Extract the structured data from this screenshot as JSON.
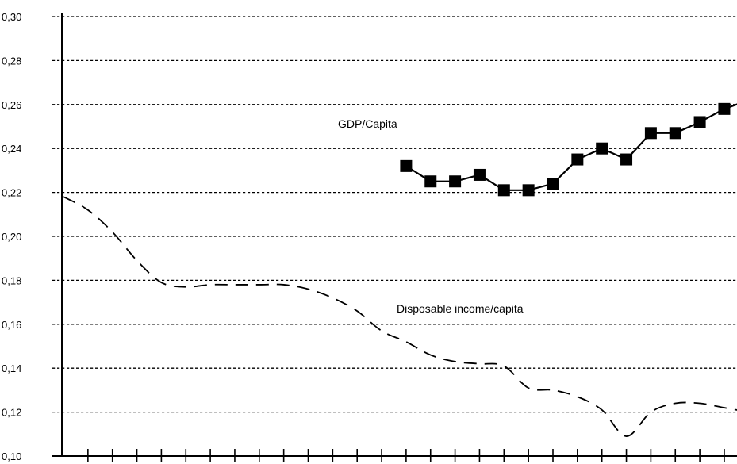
{
  "chart_data": {
    "type": "line",
    "title": "",
    "xlabel": "",
    "ylabel": "",
    "ylim": [
      0.1,
      0.3
    ],
    "y_ticks": [
      "0,10",
      "0,12",
      "0,14",
      "0,16",
      "0,18",
      "0,20",
      "0,22",
      "0,24",
      "0,26",
      "0,28",
      "0,30"
    ],
    "y_tick_values": [
      0.1,
      0.12,
      0.14,
      0.16,
      0.18,
      0.2,
      0.22,
      0.24,
      0.26,
      0.28,
      0.3
    ],
    "x_tick_count": 28,
    "x_tick_labels": [],
    "grid": true,
    "series": [
      {
        "name": "GDP/Capita",
        "style": "solid-square-markers",
        "x": [
          14,
          15,
          16,
          17,
          18,
          19,
          20,
          21,
          22,
          23,
          24,
          25,
          26,
          27,
          28
        ],
        "values": [
          0.232,
          0.225,
          0.225,
          0.228,
          0.221,
          0.221,
          0.224,
          0.235,
          0.24,
          0.235,
          0.247,
          0.247,
          0.252,
          0.258,
          0.262
        ]
      },
      {
        "name": "Disposable income/capita",
        "style": "dashed",
        "x": [
          0,
          1,
          2,
          3,
          4,
          5,
          6,
          7,
          8,
          9,
          10,
          11,
          12,
          13,
          14,
          15,
          16,
          17,
          18,
          19,
          20,
          21,
          22,
          23,
          24,
          25,
          26,
          27,
          28
        ],
        "values": [
          0.218,
          0.212,
          0.202,
          0.189,
          0.179,
          0.177,
          0.178,
          0.178,
          0.178,
          0.178,
          0.176,
          0.172,
          0.166,
          0.157,
          0.152,
          0.146,
          0.143,
          0.142,
          0.141,
          0.131,
          0.13,
          0.127,
          0.121,
          0.109,
          0.12,
          0.124,
          0.124,
          0.122,
          0.12
        ]
      }
    ],
    "annotations": [
      {
        "text": "GDP/Capita",
        "series": 0
      },
      {
        "text": "Disposable income/capita",
        "series": 1
      }
    ]
  }
}
